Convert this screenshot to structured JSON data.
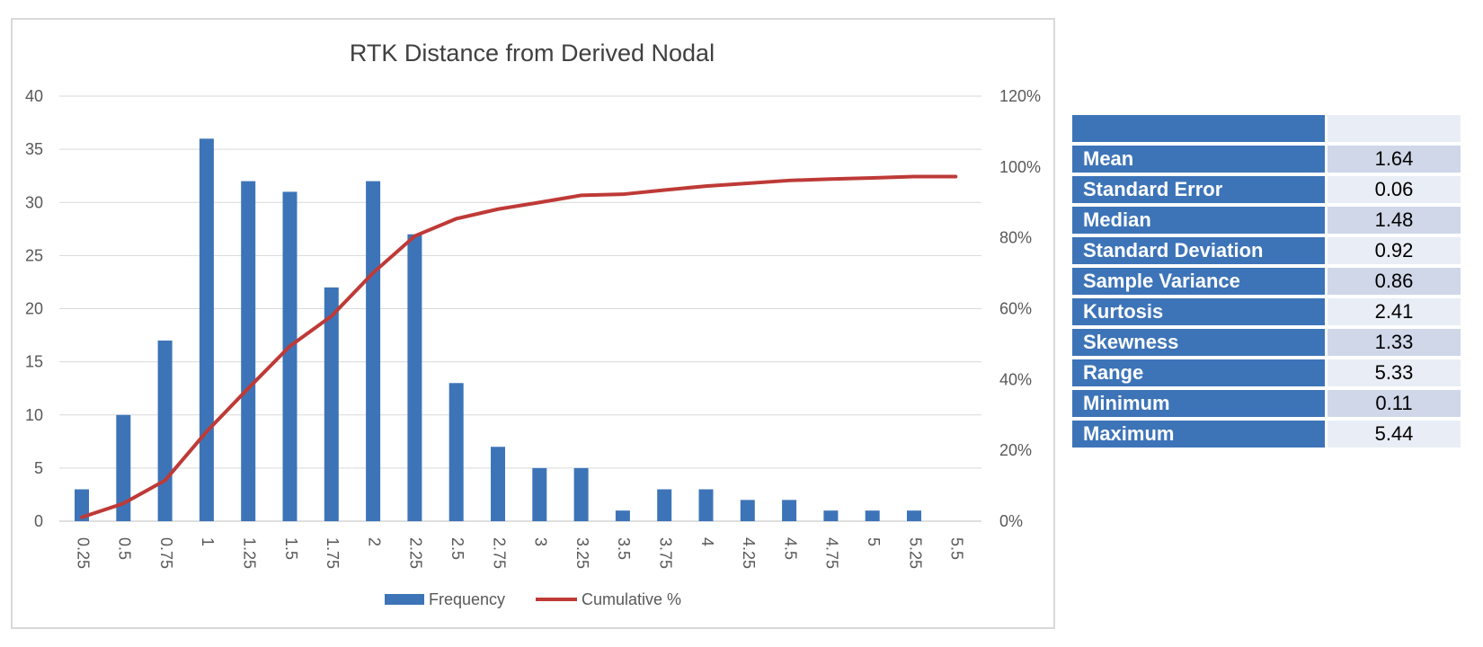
{
  "chart_data": {
    "type": "bar",
    "title": "RTK Distance from Derived Nodal",
    "categories": [
      "0.25",
      "0.5",
      "0.75",
      "1",
      "1.25",
      "1.5",
      "1.75",
      "2",
      "2.25",
      "2.5",
      "2.75",
      "3",
      "3.25",
      "3.5",
      "3.75",
      "4",
      "4.25",
      "4.5",
      "4.75",
      "5",
      "5.25",
      "5.5"
    ],
    "series": [
      {
        "name": "Frequency",
        "type": "bar",
        "axis": "left",
        "color": "#3d74b8",
        "values": [
          3,
          10,
          17,
          36,
          32,
          31,
          22,
          32,
          27,
          13,
          7,
          5,
          5,
          1,
          3,
          3,
          2,
          2,
          1,
          1,
          1,
          0
        ]
      },
      {
        "name": "Cumulative %",
        "type": "line",
        "axis": "right",
        "color": "#be3a37",
        "values": [
          1.1,
          5.0,
          11.5,
          25.3,
          37.5,
          49.4,
          57.9,
          70.1,
          80.5,
          85.4,
          88.1,
          90.0,
          92.0,
          92.3,
          93.5,
          94.6,
          95.4,
          96.2,
          96.6,
          96.9,
          97.3,
          97.3
        ]
      }
    ],
    "y_left": {
      "ticks": [
        "0",
        "5",
        "10",
        "15",
        "20",
        "25",
        "30",
        "35",
        "40"
      ],
      "range": [
        0,
        40
      ]
    },
    "y_right": {
      "ticks": [
        "0%",
        "20%",
        "40%",
        "60%",
        "80%",
        "100%",
        "120%"
      ],
      "range": [
        0,
        120
      ]
    },
    "grid": true,
    "legend_position": "bottom"
  },
  "stats": {
    "header": [
      "",
      ""
    ],
    "rows": [
      {
        "label": "Mean",
        "value": "1.64"
      },
      {
        "label": "Standard Error",
        "value": "0.06"
      },
      {
        "label": "Median",
        "value": "1.48"
      },
      {
        "label": "Standard Deviation",
        "value": "0.92"
      },
      {
        "label": "Sample Variance",
        "value": "0.86"
      },
      {
        "label": "Kurtosis",
        "value": "2.41"
      },
      {
        "label": "Skewness",
        "value": "1.33"
      },
      {
        "label": "Range",
        "value": "5.33"
      },
      {
        "label": "Minimum",
        "value": "0.11"
      },
      {
        "label": "Maximum",
        "value": "5.44"
      }
    ]
  }
}
